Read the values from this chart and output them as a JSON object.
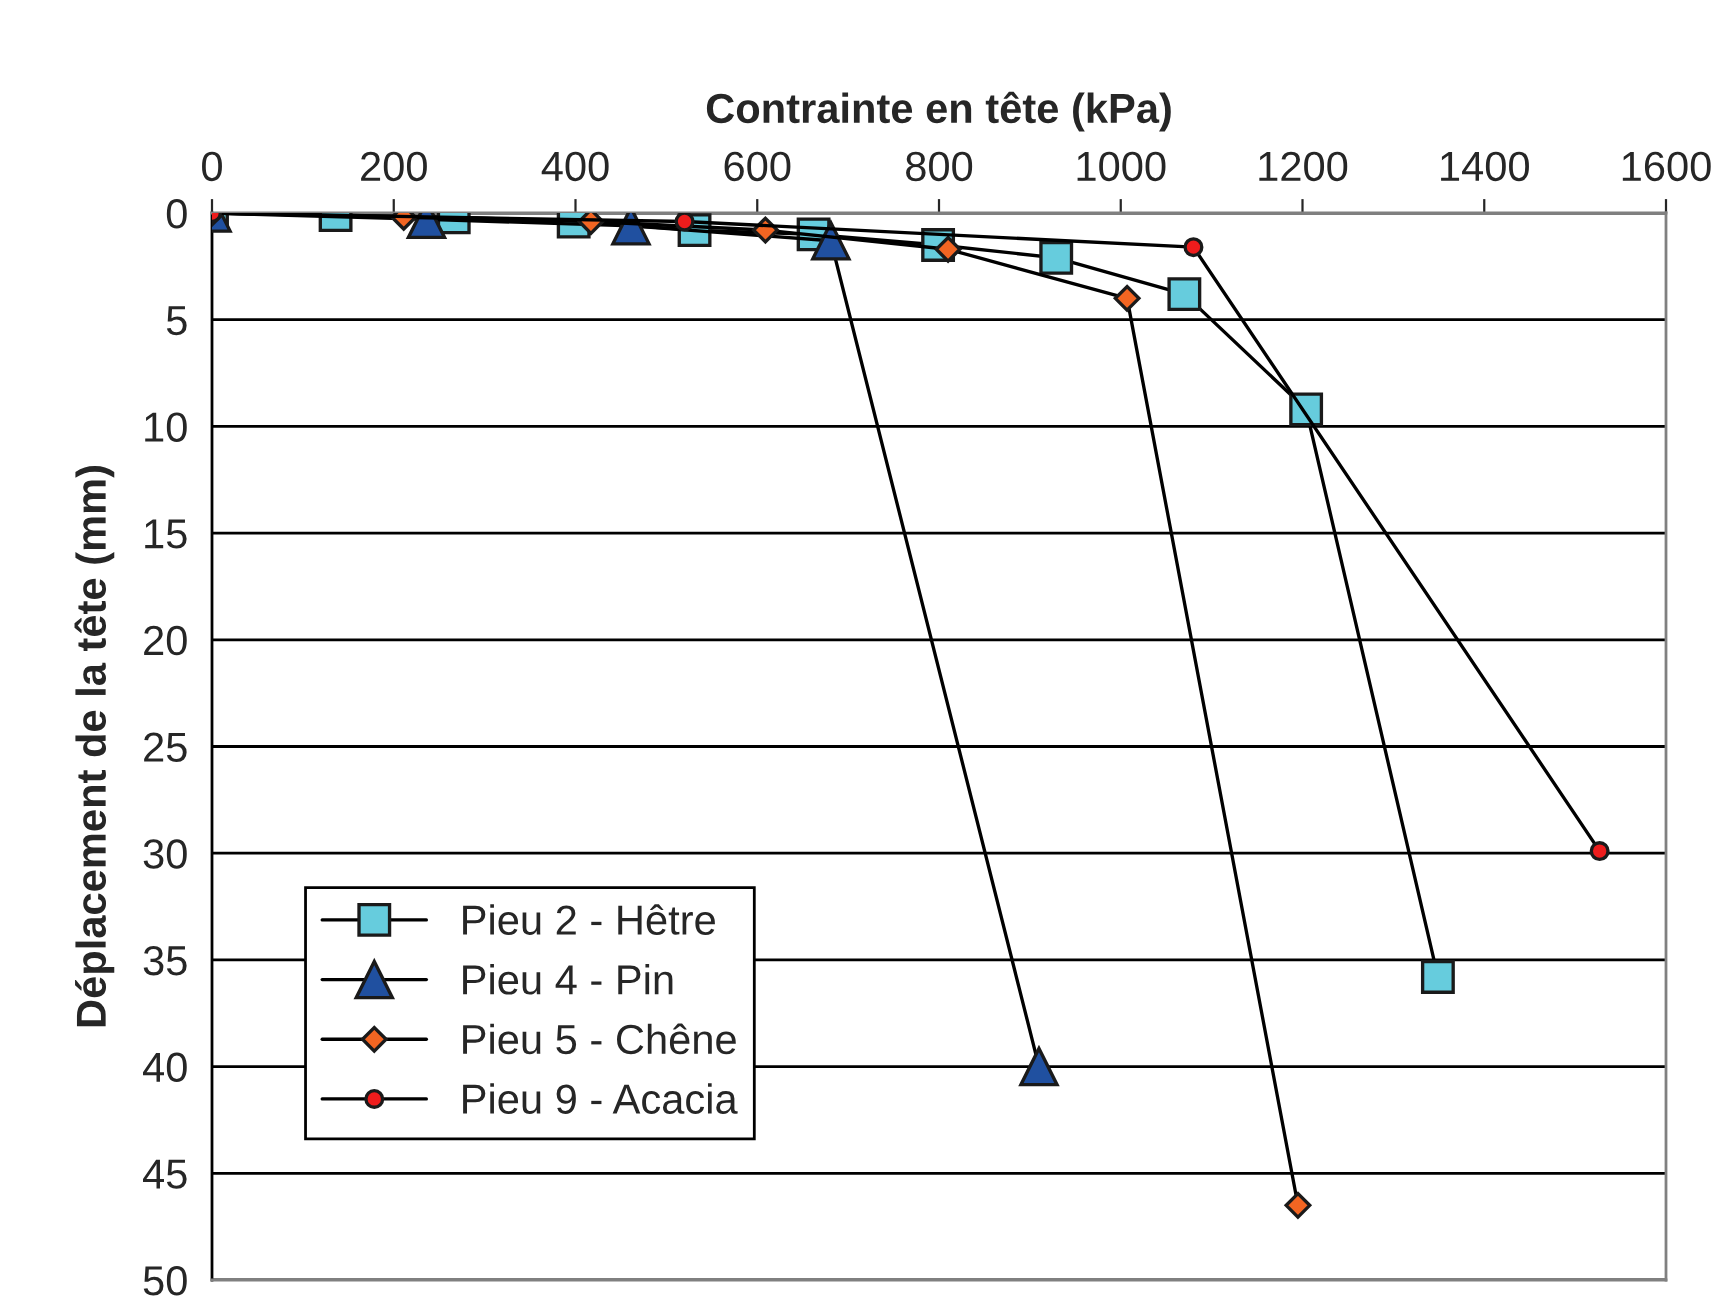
{
  "chart_data": {
    "type": "line",
    "xlabel": "Contrainte en tête (kPa)",
    "ylabel": "Déplacement de la tête (mm)",
    "xlim": [
      0,
      1600
    ],
    "xticks": [
      0,
      200,
      400,
      600,
      800,
      1000,
      1200,
      1400,
      1600
    ],
    "ylim": [
      50,
      0
    ],
    "yticks": [
      0,
      5,
      10,
      15,
      20,
      25,
      30,
      35,
      40,
      45,
      50
    ],
    "grid": "y",
    "legend": "left",
    "line_style": "solid",
    "series": [
      {
        "name": "Pieu 2 - Hêtre",
        "color": "#66ccdd",
        "marker": "square",
        "x": [
          0,
          136,
          266,
          398,
          531,
          662,
          799,
          929,
          1070,
          1204,
          1349
        ],
        "values": [
          0,
          0.1,
          0.2,
          0.4,
          0.8,
          1.0,
          1.5,
          2.1,
          3.8,
          9.2,
          35.8
        ]
      },
      {
        "name": "Pieu 4 - Pin",
        "color": "#2050a0",
        "marker": "triangle",
        "x": [
          0,
          236,
          461,
          681,
          910
        ],
        "values": [
          0,
          0.3,
          0.6,
          1.3,
          40
        ]
      },
      {
        "name": "Pieu 5 - Chêne",
        "color": "#f26522",
        "marker": "diamond",
        "x": [
          0,
          211,
          417,
          609,
          810,
          1007,
          1195
        ],
        "values": [
          0,
          0.2,
          0.4,
          0.8,
          1.7,
          4.0,
          46.5
        ]
      },
      {
        "name": "Pieu 9 - Acacia",
        "color": "#ee1c1c",
        "marker": "circle",
        "x": [
          0,
          520,
          1080,
          1527
        ],
        "values": [
          0,
          0.4,
          1.6,
          29.9
        ]
      }
    ]
  }
}
